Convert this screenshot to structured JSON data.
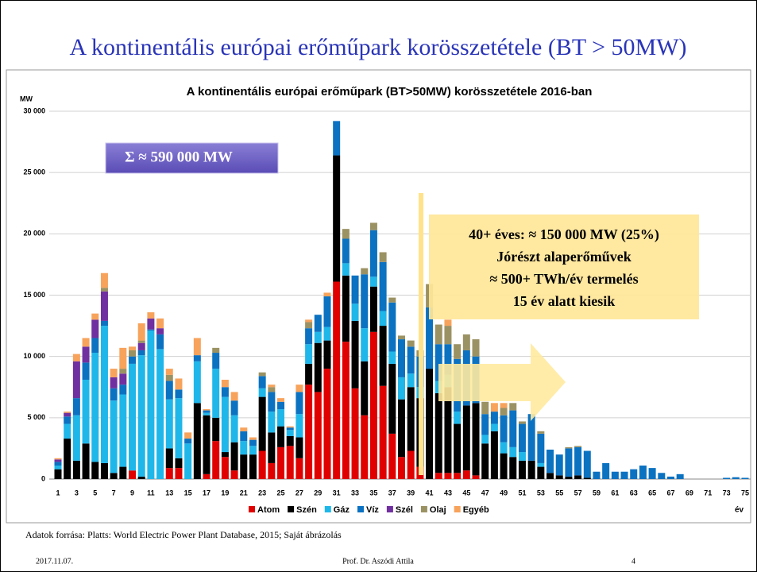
{
  "slide": {
    "title": "A kontinentális európai erőműpark korösszetétele (BT > 50MW)",
    "source": "Adatok forrása: Platts: World Electric Power Plant Database, 2015; Saját ábrázolás",
    "date": "2017.11.07.",
    "author": "Prof. Dr. Aszódi Attila",
    "page": "4"
  },
  "chart_data": {
    "type": "bar",
    "stacked": true,
    "title": "A kontinentális európai erőműpark (BT>50MW) korösszetétele 2016-ban",
    "y_label": "MW",
    "x_label": "év",
    "annotations": [
      "Σ ≈ 590 000 MW",
      "40+ éves: ≈ 150 000 MW (25%)",
      "Jórészt alaperőművek",
      "≈ 500+ TWh/év termelés",
      "15 év alatt kiesik"
    ],
    "categories": [
      "1",
      null,
      "3",
      null,
      "5",
      null,
      "7",
      null,
      "9",
      null,
      "11",
      null,
      "13",
      null,
      "15",
      null,
      "17",
      null,
      "19",
      null,
      "21",
      null,
      "23",
      null,
      "25",
      null,
      "27",
      null,
      "29",
      null,
      "31",
      null,
      "33",
      null,
      "35",
      null,
      "37",
      null,
      "39",
      null,
      "41",
      null,
      "43",
      null,
      "45",
      null,
      "47",
      null,
      "49",
      null,
      "51",
      null,
      "53",
      null,
      "55",
      null,
      "57",
      null,
      "59",
      null,
      "61",
      null,
      "63",
      null,
      "65",
      null,
      "67",
      null,
      "69",
      null,
      "71",
      null,
      "73",
      null,
      "75"
    ],
    "series": [
      {
        "name": "Atom",
        "color": "#e00000",
        "values": [
          0,
          0,
          0,
          0,
          0,
          0,
          0,
          0,
          700,
          0,
          0,
          0,
          900,
          900,
          0,
          0,
          400,
          3100,
          1800,
          700,
          0,
          0,
          2300,
          1300,
          2600,
          2700,
          1700,
          7700,
          7100,
          9000,
          16100,
          11200,
          7400,
          5200,
          12000,
          7600,
          3700,
          1800,
          2300,
          1000,
          0,
          500,
          500,
          500,
          700,
          300,
          0,
          0,
          0,
          0,
          0,
          0,
          0,
          0,
          0,
          0,
          0,
          0,
          0,
          0,
          0,
          0,
          0,
          0,
          0,
          0,
          0,
          0,
          0,
          0,
          0,
          0,
          0,
          0,
          0
        ]
      },
      {
        "name": "Szén",
        "color": "#000000",
        "values": [
          800,
          3300,
          1500,
          2900,
          1400,
          1300,
          500,
          1000,
          0,
          200,
          0,
          0,
          1600,
          800,
          0,
          6200,
          4800,
          1900,
          400,
          2300,
          2000,
          2000,
          4400,
          2500,
          1700,
          800,
          1700,
          1700,
          4000,
          2300,
          10300,
          5400,
          5500,
          4400,
          3700,
          4900,
          5700,
          4700,
          5200,
          5600,
          9000,
          6500,
          7000,
          4000,
          5300,
          5900,
          2900,
          3900,
          2100,
          1800,
          1500,
          1500,
          1000,
          500,
          300,
          200,
          300,
          100,
          0,
          0,
          0,
          0,
          0,
          0,
          0,
          0,
          0,
          0,
          0,
          0,
          0,
          0,
          0,
          0,
          0
        ]
      },
      {
        "name": "Gáz",
        "color": "#1fb7ea",
        "values": [
          300,
          1200,
          3700,
          5200,
          8900,
          11200,
          5900,
          5900,
          8700,
          9900,
          12100,
          10600,
          4000,
          4900,
          2900,
          3400,
          200,
          4000,
          4500,
          2200,
          1100,
          700,
          700,
          1700,
          1400,
          500,
          1900,
          1600,
          900,
          1100,
          0,
          1000,
          1400,
          2700,
          800,
          1200,
          1000,
          1800,
          1100,
          900,
          0,
          1000,
          1000,
          1000,
          0,
          0,
          700,
          600,
          900,
          800,
          700,
          0,
          300,
          0,
          0,
          0,
          0,
          0,
          0,
          0,
          0,
          0,
          0,
          0,
          0,
          0,
          0,
          0,
          0,
          0,
          0,
          0,
          0,
          0,
          0
        ]
      },
      {
        "name": "Víz",
        "color": "#0b72c1",
        "values": [
          300,
          600,
          1400,
          1400,
          1200,
          400,
          1000,
          800,
          600,
          400,
          100,
          1200,
          1500,
          700,
          400,
          500,
          200,
          1300,
          800,
          1200,
          800,
          500,
          1000,
          1600,
          600,
          200,
          1800,
          1300,
          1400,
          2500,
          2800,
          2000,
          2300,
          4400,
          3800,
          4000,
          4000,
          3100,
          2200,
          2500,
          5000,
          3000,
          2500,
          4300,
          4500,
          3800,
          1700,
          1000,
          2200,
          3000,
          2300,
          3800,
          2400,
          1900,
          1700,
          2300,
          2300,
          2200,
          600,
          1300,
          600,
          600,
          800,
          1100,
          900,
          500,
          200,
          400,
          0,
          0,
          0,
          0,
          100,
          150,
          100
        ]
      },
      {
        "name": "Szél",
        "color": "#7030a0",
        "values": [
          200,
          300,
          3000,
          1300,
          1500,
          2400,
          900,
          900,
          0,
          600,
          900,
          500,
          0,
          0,
          0,
          0,
          0,
          0,
          0,
          0,
          0,
          0,
          0,
          0,
          0,
          0,
          0,
          0,
          0,
          0,
          0,
          0,
          0,
          0,
          0,
          0,
          0,
          0,
          0,
          0,
          0,
          0,
          0,
          0,
          0,
          0,
          0,
          0,
          0,
          0,
          0,
          0,
          0,
          0,
          0,
          0,
          0,
          0,
          0,
          0,
          0,
          0,
          0,
          0,
          0,
          0,
          0,
          0,
          0,
          0,
          0,
          0,
          0,
          0,
          0
        ]
      },
      {
        "name": "Olaj",
        "color": "#9b9264",
        "values": [
          0,
          0,
          0,
          0,
          0,
          300,
          0,
          400,
          500,
          200,
          0,
          0,
          500,
          0,
          0,
          0,
          0,
          400,
          0,
          0,
          0,
          0,
          300,
          400,
          0,
          0,
          0,
          500,
          0,
          0,
          0,
          800,
          0,
          500,
          600,
          800,
          400,
          300,
          500,
          500,
          1900,
          1600,
          1500,
          1200,
          1300,
          1400,
          1000,
          0,
          600,
          600,
          200,
          0,
          200,
          0,
          0,
          100,
          100,
          0,
          0,
          0,
          0,
          0,
          0,
          0,
          0,
          0,
          0,
          0,
          0,
          0,
          0,
          0,
          0,
          0,
          0
        ]
      },
      {
        "name": "Egyéb",
        "color": "#f7a35c",
        "values": [
          100,
          100,
          600,
          700,
          500,
          1200,
          700,
          1700,
          300,
          1400,
          500,
          800,
          500,
          900,
          500,
          1400,
          100,
          0,
          600,
          700,
          300,
          200,
          0,
          200,
          300,
          100,
          600,
          200,
          0,
          300,
          0,
          0,
          0,
          0,
          0,
          0,
          0,
          0,
          0,
          0,
          0,
          0,
          500,
          0,
          0,
          0,
          0,
          700,
          400,
          0,
          0,
          0,
          0,
          0,
          0,
          0,
          0,
          0,
          0,
          0,
          0,
          0,
          0,
          0,
          0,
          0,
          0,
          0,
          0,
          0,
          0,
          0,
          0,
          0,
          0
        ]
      }
    ],
    "ylim": [
      0,
      30000
    ],
    "yticks": [
      0,
      {
        "value": 5000,
        "label": "5 000"
      },
      {
        "value": 10000,
        "label": "10 000"
      },
      {
        "value": 15000,
        "label": "15 000"
      },
      {
        "value": 20000,
        "label": "20 000"
      },
      {
        "value": 25000,
        "label": "25 000"
      },
      {
        "value": 30000,
        "label": "30 000"
      }
    ],
    "grid": true
  }
}
